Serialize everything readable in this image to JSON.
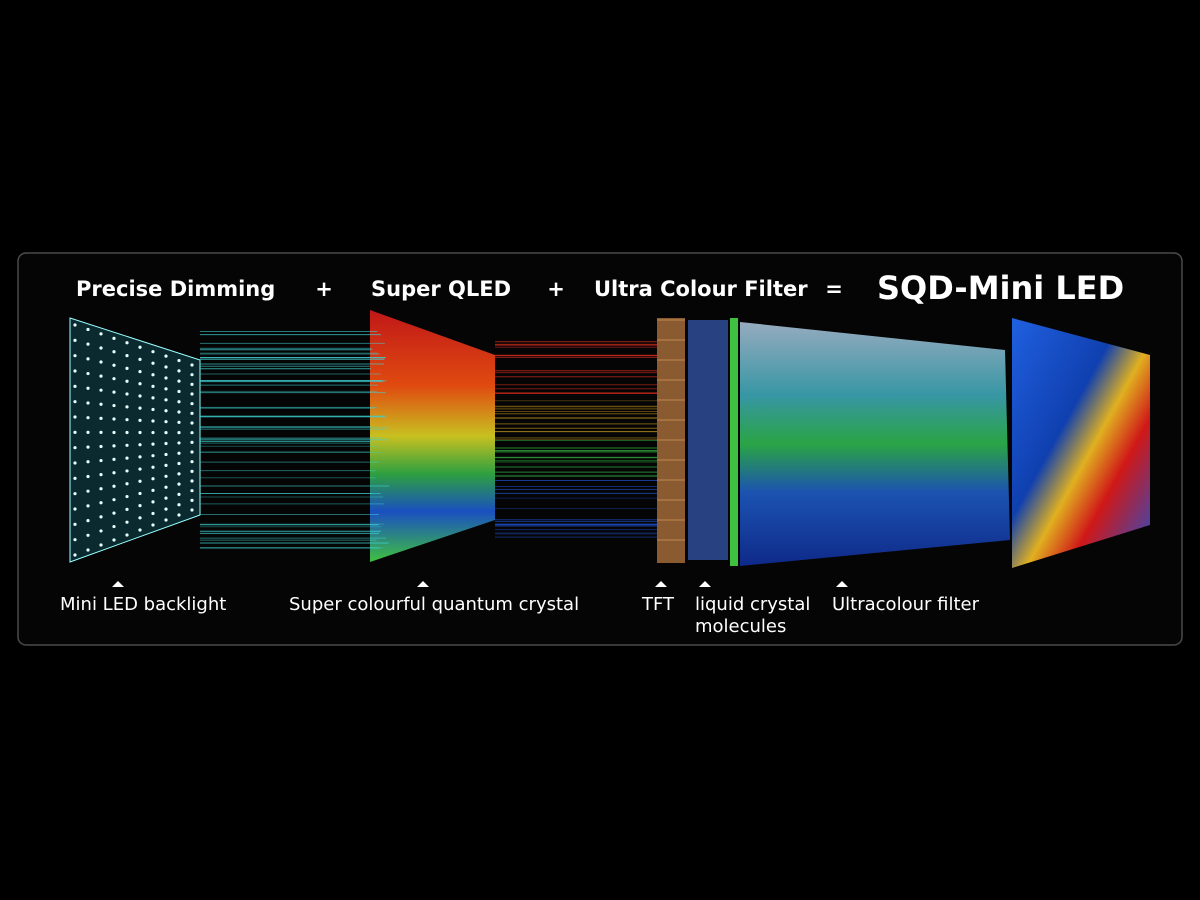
{
  "header": {
    "terms": [
      "Precise Dimming",
      "Super QLED",
      "Ultra Colour Filter"
    ],
    "operators": [
      "+",
      "+",
      "="
    ],
    "result": "SQD-Mini LED"
  },
  "labels": [
    {
      "lines": [
        "Mini LED backlight"
      ]
    },
    {
      "lines": [
        "Super colourful quantum crystal"
      ]
    },
    {
      "lines": [
        "TFT"
      ]
    },
    {
      "lines": [
        "liquid crystal",
        "molecules"
      ]
    },
    {
      "lines": [
        "Ultracolour filter"
      ]
    }
  ]
}
